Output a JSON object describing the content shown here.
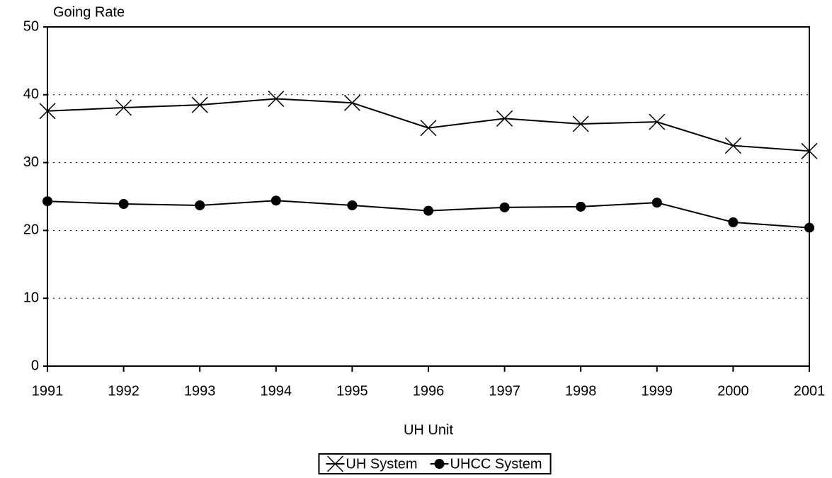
{
  "chart_data": {
    "type": "line",
    "title": "Going Rate",
    "x_label": "UH Unit",
    "x": [
      1991,
      1992,
      1993,
      1994,
      1995,
      1996,
      1997,
      1998,
      1999,
      2000,
      2001
    ],
    "xlim": [
      1991,
      2001
    ],
    "xticks": [
      1991,
      1992,
      1993,
      1994,
      1995,
      1996,
      1997,
      1998,
      1999,
      2000,
      2001
    ],
    "ylim": [
      0,
      50
    ],
    "yticks": [
      0,
      10,
      20,
      30,
      40,
      50
    ],
    "grid": true,
    "legend": "bottom",
    "series": [
      {
        "name": "UH System",
        "color": "#000000",
        "marker": "x",
        "values": [
          37.6,
          38.1,
          38.5,
          39.4,
          38.8,
          35.1,
          36.5,
          35.7,
          36.0,
          32.5,
          31.7
        ]
      },
      {
        "name": "UHCC System",
        "color": "#000000",
        "marker": "circle",
        "values": [
          24.3,
          23.9,
          23.7,
          24.4,
          23.7,
          22.9,
          23.4,
          23.5,
          24.1,
          21.2,
          20.4
        ]
      }
    ]
  }
}
